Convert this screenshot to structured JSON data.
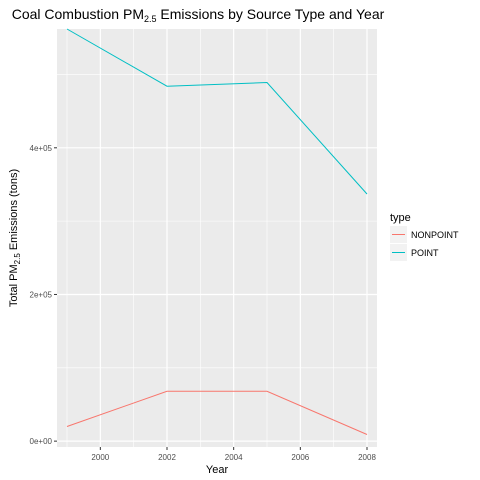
{
  "chart_data": {
    "type": "line",
    "title": "Coal Combustion PM",
    "title_sub": "2.5",
    "title_rest": " Emissions by Source Type and Year",
    "xlabel": "Year",
    "ylabel_pre": "Total PM",
    "ylabel_sub": "2.5",
    "ylabel_post": " Emissions (tons)",
    "xlim": [
      1998.7,
      2008.3
    ],
    "ylim": [
      -8000,
      562000
    ],
    "x_ticks": [
      2000,
      2002,
      2004,
      2006,
      2008
    ],
    "x_tick_labels": [
      "2000",
      "2002",
      "2004",
      "2006",
      "2008"
    ],
    "y_ticks": [
      0,
      200000,
      400000
    ],
    "y_tick_labels": [
      "0e+00",
      "2e+05",
      "4e+05"
    ],
    "x": [
      1999,
      2002,
      2005,
      2008
    ],
    "series": [
      {
        "name": "NONPOINT",
        "color": "#F8766D",
        "values": [
          20000,
          68000,
          68000,
          9000
        ]
      },
      {
        "name": "POINT",
        "color": "#00BFC4",
        "values": [
          562000,
          484000,
          489000,
          337000
        ]
      }
    ],
    "legend": {
      "title": "type",
      "position": "right"
    },
    "grid": true,
    "panel_background": "#EBEBEB",
    "grid_color": "#FFFFFF"
  }
}
